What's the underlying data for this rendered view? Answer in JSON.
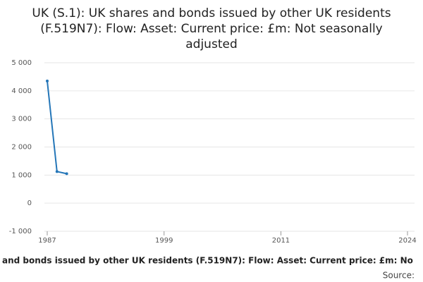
{
  "chart_data": {
    "type": "line",
    "title": "UK (S.1): UK shares and bonds issued by other UK residents (F.519N7): Flow: Asset: Current price: £m: Not seasonally adjusted",
    "x_label": "and bonds issued by other UK residents (F.519N7): Flow: Asset: Current price: £m: No",
    "source": "Source:",
    "x": [
      1987,
      1988,
      1989
    ],
    "series": [
      {
        "name": "UK (S.1)",
        "color": "#2476b8",
        "values": [
          4350,
          1125,
          1050
        ]
      }
    ],
    "xlim": [
      1987,
      2024
    ],
    "xticks": [
      1987,
      1999,
      2011,
      2024
    ],
    "ylim": [
      -1000,
      5000
    ],
    "yticks": [
      {
        "value": -1000,
        "label": "-1 000"
      },
      0,
      {
        "value": 1000,
        "label": "1 000"
      },
      {
        "value": 2000,
        "label": "2 000"
      },
      {
        "value": 3000,
        "label": "3 000"
      },
      {
        "value": 4000,
        "label": "4 000"
      },
      {
        "value": 5000,
        "label": "5 000"
      }
    ],
    "grid": true
  }
}
